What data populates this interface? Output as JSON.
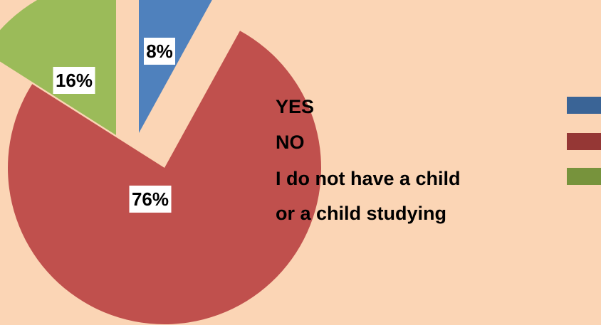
{
  "chart_data": {
    "type": "pie",
    "categories": [
      "YES",
      "NO",
      "I do not have a child or a child studying"
    ],
    "values": [
      8,
      76,
      16
    ],
    "value_labels": [
      "8%",
      "76%",
      "16%"
    ],
    "colors": [
      "#4f81bd",
      "#c0504d",
      "#9bbb59"
    ],
    "legend_colors": [
      "#3a6496",
      "#953735",
      "#77933c"
    ],
    "legend": {
      "placement": "right",
      "lines": [
        "YES",
        "NO",
        "I do not have a child",
        "or a child studying"
      ]
    },
    "exploded": true
  }
}
